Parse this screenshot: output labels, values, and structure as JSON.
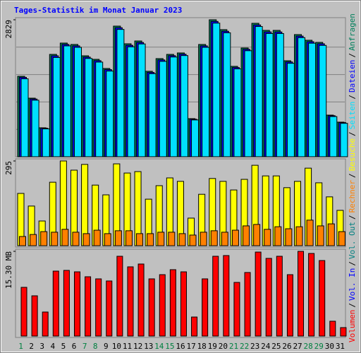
{
  "chart_data": [
    {
      "type": "bar",
      "title": "Tages-Statistik im Monat Januar 2023",
      "ylim": [
        0,
        2829
      ],
      "yticks": [
        2829
      ],
      "series": [
        {
          "name": "Seiten",
          "color": "#00e0ff",
          "values": [
            1610,
            1168,
            575,
            2050,
            2290,
            2260,
            2030,
            1955,
            1770,
            2630,
            2270,
            2330,
            1715,
            1970,
            2060,
            2090,
            760,
            2260,
            2760,
            2560,
            1815,
            2190,
            2690,
            2545,
            2545,
            1930,
            2460,
            2345,
            2300,
            830,
            690
          ]
        },
        {
          "name": "Dateien",
          "color": "#0000ff",
          "values": [
            1640,
            1192,
            590,
            2085,
            2320,
            2290,
            2058,
            1985,
            1800,
            2665,
            2302,
            2360,
            1742,
            2000,
            2088,
            2118,
            775,
            2290,
            2795,
            2592,
            1843,
            2218,
            2722,
            2578,
            2577,
            1958,
            2492,
            2376,
            2333,
            848,
            705
          ]
        },
        {
          "name": "Anfragen",
          "color": "#00805c",
          "values": [
            1662,
            1210,
            598,
            2114,
            2348,
            2319,
            2085,
            2012,
            1823,
            2698,
            2333,
            2391,
            1765,
            2027,
            2114,
            2144,
            787,
            2319,
            2829,
            2625,
            1867,
            2246,
            2756,
            2610,
            2610,
            1983,
            2523,
            2406,
            2362,
            860,
            715
          ]
        }
      ]
    },
    {
      "type": "bar",
      "ylim": [
        0,
        295
      ],
      "yticks": [
        295
      ],
      "series": [
        {
          "name": "Rechner",
          "color": "#ff8000",
          "values": [
            32,
            39,
            49,
            47,
            57,
            47,
            42,
            54,
            42,
            52,
            52,
            42,
            42,
            47,
            47,
            42,
            37,
            47,
            52,
            47,
            54,
            69,
            74,
            57,
            66,
            59,
            66,
            89,
            69,
            76,
            49
          ]
        },
        {
          "name": "Besuche",
          "color": "#ffff00",
          "values": [
            182,
            138,
            86,
            221,
            295,
            263,
            283,
            211,
            177,
            285,
            253,
            258,
            162,
            209,
            236,
            224,
            96,
            179,
            234,
            224,
            194,
            231,
            280,
            243,
            243,
            202,
            224,
            270,
            219,
            170,
            123
          ]
        }
      ]
    },
    {
      "type": "bar",
      "ylim": [
        0,
        15.3
      ],
      "yticks": [
        {
          "value": 15.3,
          "label": "15.30 MB"
        }
      ],
      "separator": "/",
      "categories": [
        "1",
        "2",
        "3",
        "4",
        "5",
        "6",
        "7",
        "8",
        "9",
        "10",
        "11",
        "12",
        "13",
        "14",
        "15",
        "16",
        "17",
        "18",
        "19",
        "20",
        "21",
        "22",
        "23",
        "24",
        "25",
        "26",
        "27",
        "28",
        "29",
        "30",
        "31"
      ],
      "category_colors": [
        "#008040",
        "#000000",
        "#000000",
        "#000000",
        "#000000",
        "#000000",
        "#008040",
        "#008040",
        "#000000",
        "#000000",
        "#000000",
        "#000000",
        "#000000",
        "#008040",
        "#008040",
        "#000000",
        "#000000",
        "#000000",
        "#000000",
        "#000000",
        "#008040",
        "#008040",
        "#000000",
        "#000000",
        "#000000",
        "#000000",
        "#000000",
        "#008040",
        "#008040",
        "#000000",
        "#000000"
      ],
      "series": [
        {
          "name": "Volumen",
          "color": "#ff0000",
          "values": [
            8.8,
            7.27,
            4.34,
            11.73,
            11.86,
            11.6,
            10.71,
            10.33,
            9.95,
            14.41,
            12.5,
            13.01,
            10.33,
            11.09,
            11.99,
            11.6,
            3.44,
            10.33,
            14.41,
            14.54,
            9.69,
            11.48,
            15.17,
            14.03,
            14.41,
            11.09,
            15.3,
            14.92,
            13.64,
            2.68,
            1.53
          ]
        },
        {
          "name": "Vol. In",
          "color": "#0000ff",
          "values": [
            null,
            null,
            null,
            null,
            null,
            null,
            null,
            null,
            null,
            null,
            null,
            null,
            null,
            null,
            null,
            null,
            null,
            null,
            null,
            null,
            null,
            null,
            null,
            null,
            null,
            null,
            null,
            null,
            null,
            null,
            null
          ]
        },
        {
          "name": "Vol. Out",
          "color": "#008080",
          "values": [
            null,
            null,
            null,
            null,
            null,
            null,
            null,
            null,
            null,
            null,
            null,
            null,
            null,
            null,
            null,
            null,
            null,
            null,
            null,
            null,
            null,
            null,
            null,
            null,
            null,
            null,
            null,
            null,
            null,
            null,
            null
          ]
        }
      ]
    }
  ]
}
